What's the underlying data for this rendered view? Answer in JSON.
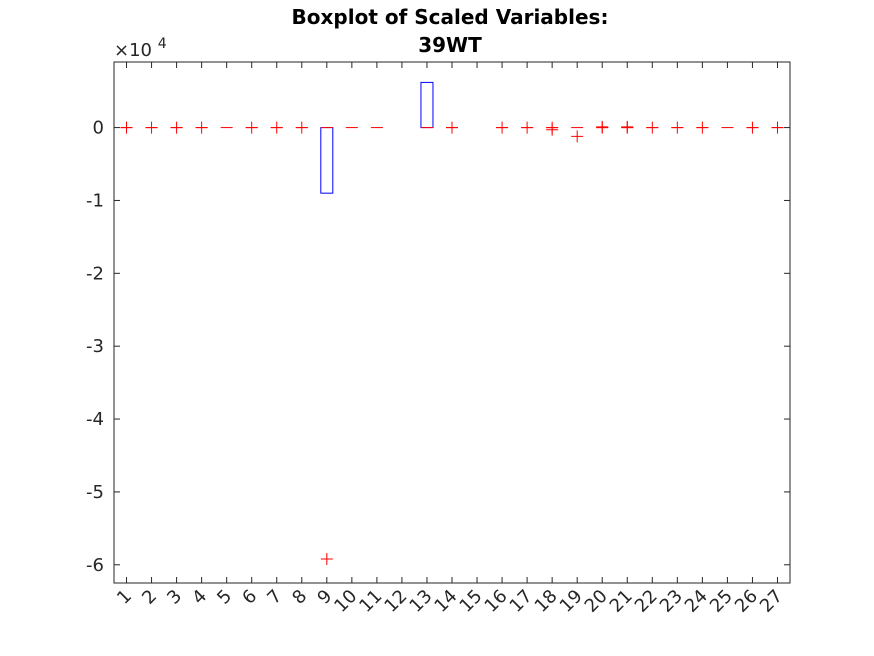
{
  "chart_data": {
    "type": "boxplot",
    "title": [
      "Boxplot of Scaled Variables:",
      "39WT"
    ],
    "xlabel": "",
    "ylabel": "",
    "y_multiplier_text": "×10",
    "y_multiplier_exponent": "4",
    "ylim": [
      -6.25,
      0.9
    ],
    "yticks": [
      0,
      -1,
      -2,
      -3,
      -4,
      -5,
      -6
    ],
    "ytick_labels": [
      "0",
      "-1",
      "-2",
      "-3",
      "-4",
      "-5",
      "-6"
    ],
    "categories": [
      "1",
      "2",
      "3",
      "4",
      "5",
      "6",
      "7",
      "8",
      "9",
      "10",
      "11",
      "12",
      "13",
      "14",
      "15",
      "16",
      "17",
      "18",
      "19",
      "20",
      "21",
      "22",
      "23",
      "24",
      "25",
      "26",
      "27"
    ],
    "box_color": "#0000ff",
    "median_color": "#ff0000",
    "outlier_color": "#ff0000",
    "boxes": [
      {
        "cat": "1",
        "q1": 0,
        "q3": 0,
        "median": 0,
        "outliers": [
          0
        ]
      },
      {
        "cat": "2",
        "q1": 0,
        "q3": 0,
        "median": 0,
        "outliers": [
          0
        ]
      },
      {
        "cat": "3",
        "q1": 0,
        "q3": 0,
        "median": 0,
        "outliers": [
          0
        ]
      },
      {
        "cat": "4",
        "q1": 0,
        "q3": 0,
        "median": 0,
        "outliers": [
          0
        ]
      },
      {
        "cat": "5",
        "q1": 0,
        "q3": 0,
        "median": 0,
        "outliers": []
      },
      {
        "cat": "6",
        "q1": 0,
        "q3": 0,
        "median": 0,
        "outliers": [
          0
        ]
      },
      {
        "cat": "7",
        "q1": 0,
        "q3": 0,
        "median": 0,
        "outliers": [
          0
        ]
      },
      {
        "cat": "8",
        "q1": 0,
        "q3": 0,
        "median": 0,
        "outliers": [
          0
        ]
      },
      {
        "cat": "9",
        "q1": -0.9,
        "q3": 0,
        "median": 0,
        "outliers": [
          -5.92
        ]
      },
      {
        "cat": "10",
        "q1": 0,
        "q3": 0,
        "median": 0,
        "outliers": []
      },
      {
        "cat": "11",
        "q1": 0,
        "q3": 0,
        "median": 0,
        "outliers": []
      },
      {
        "cat": "12",
        "q1": null,
        "q3": null,
        "median": null,
        "outliers": []
      },
      {
        "cat": "13",
        "q1": 0,
        "q3": 0.62,
        "median": 0,
        "outliers": []
      },
      {
        "cat": "14",
        "q1": 0,
        "q3": 0,
        "median": 0,
        "outliers": [
          0
        ]
      },
      {
        "cat": "15",
        "q1": null,
        "q3": null,
        "median": null,
        "outliers": []
      },
      {
        "cat": "16",
        "q1": 0,
        "q3": 0,
        "median": 0,
        "outliers": [
          0
        ]
      },
      {
        "cat": "17",
        "q1": 0,
        "q3": 0,
        "median": 0,
        "outliers": [
          0
        ]
      },
      {
        "cat": "18",
        "q1": 0,
        "q3": 0,
        "median": 0,
        "outliers": [
          0,
          -0.03
        ]
      },
      {
        "cat": "19",
        "q1": 0,
        "q3": 0,
        "median": 0,
        "outliers": [
          -0.12
        ]
      },
      {
        "cat": "20",
        "q1": 0,
        "q3": 0,
        "median": 0,
        "outliers": [
          0,
          0.01
        ]
      },
      {
        "cat": "21",
        "q1": 0,
        "q3": 0,
        "median": 0,
        "outliers": [
          0,
          0.01
        ]
      },
      {
        "cat": "22",
        "q1": 0,
        "q3": 0,
        "median": 0,
        "outliers": [
          0
        ]
      },
      {
        "cat": "23",
        "q1": 0,
        "q3": 0,
        "median": 0,
        "outliers": [
          0
        ]
      },
      {
        "cat": "24",
        "q1": 0,
        "q3": 0,
        "median": 0,
        "outliers": [
          0
        ]
      },
      {
        "cat": "25",
        "q1": 0,
        "q3": 0,
        "median": 0,
        "outliers": []
      },
      {
        "cat": "26",
        "q1": 0,
        "q3": 0,
        "median": 0,
        "outliers": [
          0
        ]
      },
      {
        "cat": "27",
        "q1": 0,
        "q3": 0,
        "median": 0,
        "outliers": [
          0
        ]
      }
    ]
  }
}
